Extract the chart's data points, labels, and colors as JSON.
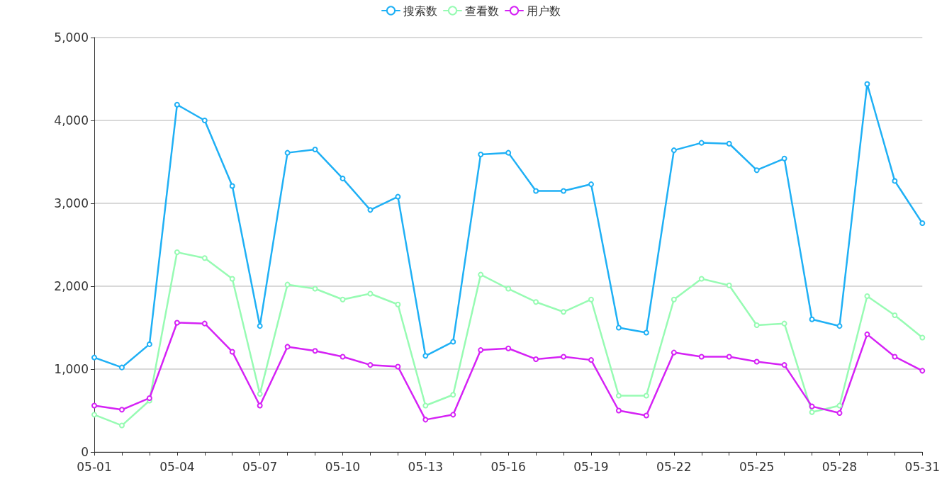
{
  "chart_data": {
    "type": "line",
    "categories": [
      "05-01",
      null,
      null,
      "05-04",
      null,
      null,
      "05-07",
      null,
      null,
      "05-10",
      null,
      null,
      "05-13",
      null,
      null,
      "05-16",
      null,
      null,
      "05-19",
      null,
      null,
      "05-22",
      null,
      null,
      "05-25",
      null,
      null,
      "05-28",
      null,
      null,
      "05-31"
    ],
    "series": [
      {
        "name": "搜索数",
        "color": "#1fb0f5",
        "values": [
          1140,
          1020,
          1300,
          4190,
          4000,
          3210,
          1520,
          3610,
          3650,
          3300,
          2920,
          3080,
          1160,
          1330,
          3590,
          3610,
          3150,
          3150,
          3230,
          1500,
          1440,
          3640,
          3730,
          3720,
          3400,
          3540,
          1600,
          1520,
          4440,
          3270,
          2760
        ]
      },
      {
        "name": "查看数",
        "color": "#97fbb3",
        "values": [
          450,
          320,
          620,
          2410,
          2340,
          2090,
          700,
          2020,
          1970,
          1840,
          1910,
          1780,
          560,
          690,
          2140,
          1970,
          1810,
          1690,
          1840,
          680,
          680,
          1840,
          2090,
          2010,
          1530,
          1550,
          480,
          560,
          1880,
          1650,
          1380
        ]
      },
      {
        "name": "用户数",
        "color": "#d522f5",
        "values": [
          560,
          510,
          650,
          1560,
          1550,
          1210,
          560,
          1270,
          1220,
          1150,
          1050,
          1030,
          390,
          450,
          1230,
          1250,
          1120,
          1150,
          1110,
          500,
          440,
          1200,
          1150,
          1150,
          1090,
          1050,
          550,
          470,
          1420,
          1150,
          980
        ]
      }
    ],
    "ylim": [
      0,
      5000
    ],
    "yticks": [
      0,
      {
        "value": 1000,
        "label": "1,000"
      },
      {
        "value": 2000,
        "label": "2,000"
      },
      {
        "value": 3000,
        "label": "3,000"
      },
      {
        "value": 4000,
        "label": "4,000"
      },
      {
        "value": 5000,
        "label": "5,000"
      }
    ],
    "grid": "y",
    "legend": "top",
    "marker": "circle",
    "line_style": "solid"
  }
}
